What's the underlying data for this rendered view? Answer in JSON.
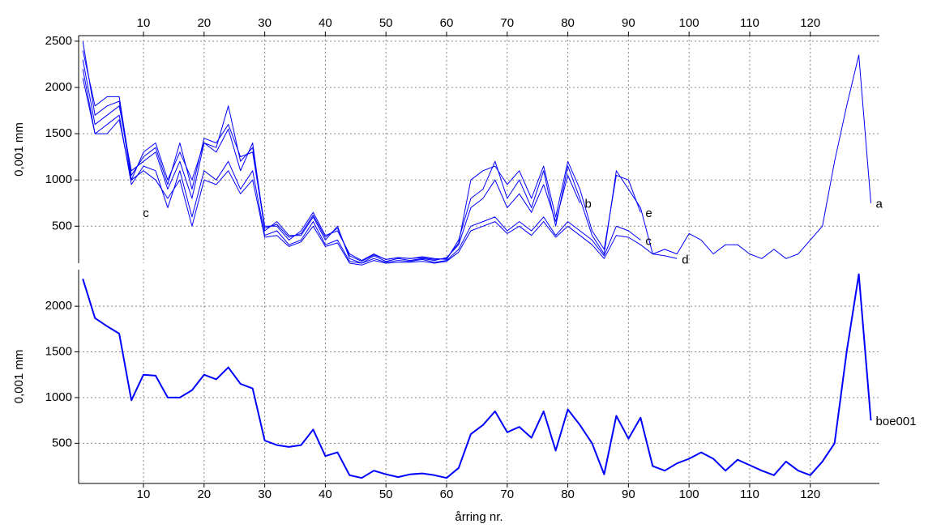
{
  "chart_data": [
    {
      "type": "line",
      "ylabel": "0,001 mm",
      "grid": true,
      "xtick_side": "top",
      "xlim": [
        -0.7,
        131.4
      ],
      "ylim": [
        100,
        2560
      ],
      "xticks": [
        10,
        20,
        30,
        40,
        50,
        60,
        70,
        80,
        90,
        100,
        110,
        120
      ],
      "yticks": [
        500,
        1000,
        1500,
        2000,
        2500
      ],
      "x": [
        0,
        2,
        4,
        6,
        8,
        10,
        12,
        14,
        16,
        18,
        20,
        22,
        24,
        26,
        28,
        30,
        32,
        34,
        36,
        38,
        40,
        42,
        44,
        46,
        48,
        50,
        52,
        54,
        56,
        58,
        60,
        62,
        64,
        66,
        68,
        70,
        72,
        74,
        76,
        78,
        80,
        82,
        84,
        86,
        88,
        90,
        92,
        94,
        96,
        98,
        100,
        102,
        104,
        106,
        108,
        110,
        112,
        114,
        116,
        118,
        120,
        122,
        124,
        126,
        128,
        130
      ],
      "series": [
        {
          "name": "a",
          "color": "#0000ff",
          "width": 1,
          "values": [
            2500,
            1700,
            1800,
            1850,
            1000,
            1300,
            1400,
            1000,
            1300,
            1000,
            1400,
            1350,
            1800,
            1200,
            1350,
            500,
            500,
            350,
            450,
            650,
            400,
            450,
            200,
            130,
            200,
            140,
            160,
            150,
            170,
            150,
            140,
            350,
            800,
            900,
            1200,
            800,
            1000,
            700,
            1100,
            500,
            1150,
            800,
            400,
            200,
            1100,
            900,
            700,
            200,
            250,
            200,
            420,
            350,
            200,
            300,
            300,
            200,
            150,
            250,
            150,
            200,
            350,
            500,
            1200,
            1800,
            2350,
            750
          ]
        },
        {
          "name": "b",
          "color": "#0000ff",
          "width": 1,
          "values": [
            2300,
            1600,
            1700,
            1800,
            1100,
            1200,
            1300,
            900,
            1200,
            800,
            1400,
            1300,
            1550,
            1100,
            1400,
            450,
            550,
            400,
            400,
            600,
            350,
            500,
            150,
            100,
            180,
            120,
            150,
            130,
            150,
            130,
            160,
            300,
            700,
            800,
            1000,
            700,
            850,
            650,
            950,
            550,
            1050,
            750,
            null,
            null,
            null,
            null,
            null,
            null,
            null,
            null,
            null,
            null,
            null,
            null,
            null,
            null,
            null,
            null,
            null,
            null,
            null,
            null,
            null,
            null,
            null,
            null
          ]
        },
        {
          "name": "c",
          "color": "#0000ff",
          "width": 1,
          "values": [
            2200,
            1500,
            1600,
            1700,
            950,
            1150,
            1100,
            700,
            1100,
            600,
            1100,
            1000,
            1200,
            900,
            1100,
            400,
            450,
            300,
            350,
            550,
            300,
            350,
            120,
            100,
            150,
            110,
            130,
            120,
            140,
            110,
            130,
            250,
            500,
            550,
            600,
            450,
            550,
            450,
            600,
            400,
            550,
            450,
            350,
            180,
            500,
            450,
            350,
            null,
            null,
            null,
            null,
            null,
            null,
            null,
            null,
            null,
            null,
            null,
            null,
            null,
            null,
            null,
            null,
            null,
            null,
            null
          ]
        },
        {
          "name": "d",
          "color": "#0000ff",
          "width": 1,
          "values": [
            2100,
            1500,
            1500,
            1650,
            1000,
            1100,
            1000,
            800,
            1000,
            500,
            1000,
            950,
            1100,
            850,
            1000,
            380,
            400,
            280,
            330,
            500,
            280,
            320,
            100,
            80,
            130,
            100,
            110,
            110,
            120,
            100,
            120,
            220,
            450,
            500,
            550,
            420,
            500,
            400,
            550,
            380,
            500,
            400,
            300,
            150,
            400,
            380,
            300,
            200,
            180,
            150,
            null,
            null,
            null,
            null,
            null,
            null,
            null,
            null,
            null,
            null,
            null,
            null,
            null,
            null,
            null,
            null
          ]
        },
        {
          "name": "e",
          "color": "#0000ff",
          "width": 1,
          "values": [
            2400,
            1800,
            1900,
            1900,
            1050,
            1250,
            1350,
            950,
            1400,
            900,
            1450,
            1400,
            1600,
            1250,
            1300,
            480,
            520,
            380,
            420,
            620,
            380,
            480,
            180,
            120,
            190,
            140,
            160,
            150,
            160,
            140,
            150,
            320,
            1000,
            1100,
            1150,
            950,
            1100,
            800,
            1150,
            600,
            1200,
            900,
            450,
            250,
            1050,
            1000,
            650,
            null,
            null,
            null,
            null,
            null,
            null,
            null,
            null,
            null,
            null,
            null,
            null,
            null,
            null,
            null,
            null,
            null,
            null,
            null
          ]
        }
      ]
    },
    {
      "type": "line",
      "ylabel": "0,001 mm",
      "xlabel": "årring nr.",
      "grid": true,
      "xtick_side": "bottom",
      "xlim": [
        -0.7,
        131.4
      ],
      "ylim": [
        60,
        2400
      ],
      "xticks": [
        10,
        20,
        30,
        40,
        50,
        60,
        70,
        80,
        90,
        100,
        110,
        120
      ],
      "yticks": [
        500,
        1000,
        1500,
        2000
      ],
      "x": [
        0,
        2,
        4,
        6,
        8,
        10,
        12,
        14,
        16,
        18,
        20,
        22,
        24,
        26,
        28,
        30,
        32,
        34,
        36,
        38,
        40,
        42,
        44,
        46,
        48,
        50,
        52,
        54,
        56,
        58,
        60,
        62,
        64,
        66,
        68,
        70,
        72,
        74,
        76,
        78,
        80,
        82,
        84,
        86,
        88,
        90,
        92,
        94,
        96,
        98,
        100,
        102,
        104,
        106,
        108,
        110,
        112,
        114,
        116,
        118,
        120,
        122,
        124,
        126,
        128,
        130
      ],
      "series": [
        {
          "name": "boe001",
          "color": "#0000ff",
          "width": 2,
          "values": [
            2300,
            1870,
            1780,
            1700,
            970,
            1250,
            1240,
            1000,
            1000,
            1080,
            1250,
            1200,
            1330,
            1150,
            1100,
            530,
            480,
            460,
            480,
            650,
            360,
            400,
            150,
            120,
            200,
            160,
            130,
            160,
            170,
            150,
            120,
            230,
            600,
            700,
            850,
            620,
            680,
            560,
            850,
            420,
            870,
            700,
            500,
            160,
            800,
            550,
            780,
            250,
            200,
            280,
            330,
            400,
            330,
            200,
            320,
            260,
            200,
            150,
            300,
            200,
            150,
            300,
            500,
            1500,
            2350,
            750
          ]
        }
      ]
    }
  ]
}
